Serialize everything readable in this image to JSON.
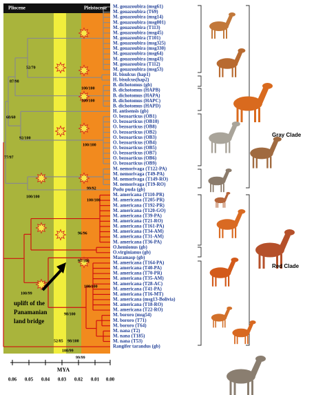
{
  "epochs": [
    "Pliocene",
    "Pleistocene"
  ],
  "taxa": [
    "M. gouazoubira (msg61)",
    "M. gouazoubira (T69)",
    "M. gouazoubira (msg14)",
    "M. gouazoubira (msg001)",
    "M. gouazoubira (T113)",
    "M. gouazoubira (msg45)",
    "M. gouazoubira (T101)",
    "M. gouazoubira (msg325)",
    "M. gouazoubira (msg330)",
    "M. gouazoubira (msg64)",
    "M. gouazoubira (msg43)",
    "M. gouazoubira (T112)",
    "M. gouazoubira (msg53)",
    "H. bisulcus (hap1)",
    "H. bisulcus(hap2)",
    "B. dichotomus (gb)",
    "B. dichotomus (HAPB)",
    "B. dichotomus (HAPA)",
    "B. dichotomus (HAPC)",
    "B. dichotomus (HAPD)",
    "H. antisensis (gb)",
    "O. bezoarticus (OB1)",
    "O. bezoarticus (OB10)",
    "O. bezoarticus (OB8)",
    "O. bezoarticus (OB2)",
    "O. bezoarticus (OB3)",
    "O. bezoarticus (OB4)",
    "O. bezoarticus (OB5)",
    "O. bezoarticus (OB7)",
    "O. bezoarticus (OB6)",
    "O. bezoarticus (OB9)",
    "M. nemorivaga (T122-PA)",
    "M. nemorivaga (T49-PA)",
    "M. nemorivaga (T149-RO)",
    "M. nemorivaga (T19-RO)",
    "Pudu puda (gb)",
    "M. americana (T110-PR)",
    "M. americana (T205-PR)",
    "M. americana (T192-PR)",
    "M. americana (T120-GO)",
    "M. americana (T39-PA)",
    "M. americana (T21-RO)",
    "M. americana (T161-PA)",
    "M. americana (T34-AM)",
    "M. americana (T31-AM)",
    "M. americana (T36-PA)",
    "O.hemionus (gb)",
    "O.virginianus (gb)",
    "Mazamasp (gb)",
    "M. americana (T164-PA)",
    "M. americana (T40-PA)",
    "M. americana (T70-PR)",
    "M. americana (T35-AM)",
    "M. americana (T28-AC)",
    "M. americana (T41-PA)",
    "M. americana (T16-MT)",
    "M. americana (msg13-Bolivia)",
    "M. americana (T18-RO)",
    "M. americana (T22-RO)",
    "M. bororo (msg54)",
    "M. bororo (T71)",
    "M. bororo (T64)",
    "M. nana (T2)",
    "M. nana (T185)",
    "M. nana (T53)",
    "Rangifer tarandus (gb)"
  ],
  "support": [
    "52/70",
    "87/98",
    "100/100",
    "100/100",
    "68/60",
    "92/100",
    "100/100",
    "77/97",
    "99/92",
    "100/100",
    "100/100",
    "96/96",
    "97/100",
    "100/100",
    "100/99",
    "98/100",
    "52/85",
    "98/100",
    "100/99",
    "99/99"
  ],
  "clades": [
    "Gray Clade",
    "Red Clade"
  ],
  "annotation": [
    "uplift of the",
    "Panamanian",
    "land bridge"
  ],
  "axis": {
    "label": "MYA",
    "ticks": [
      "0.06",
      "0.05",
      "0.04",
      "0.03",
      "0.02",
      "0.01",
      "0.00"
    ]
  }
}
